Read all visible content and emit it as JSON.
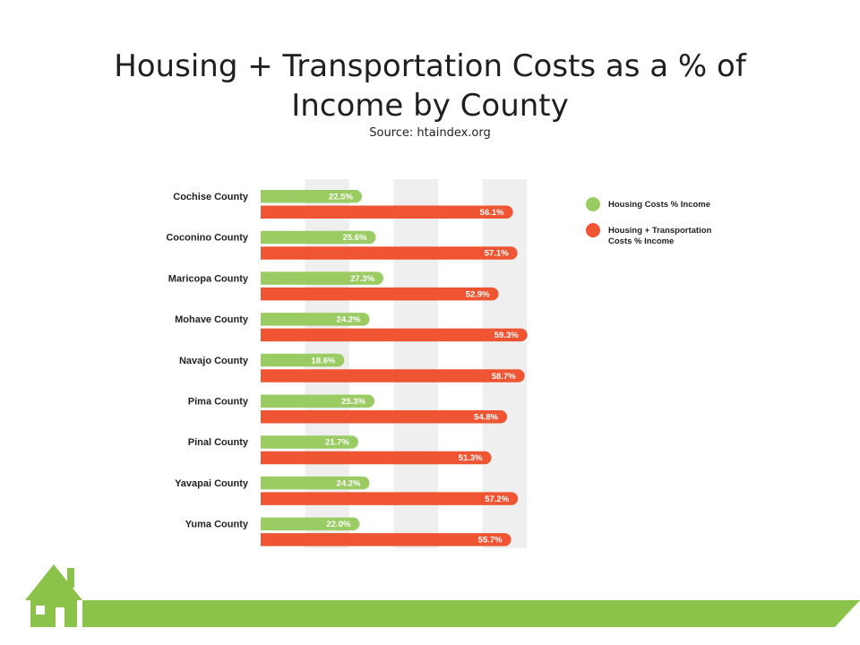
{
  "page": {
    "title": "Housing + Transportation Costs as a % of Income by County",
    "subtitle": "Source: htaindex.org"
  },
  "colors": {
    "housing": "#9bcc63",
    "housing_transport": "#ef5532",
    "band": "#efefef",
    "footer_green": "#8bc34a",
    "label_text": "#222222",
    "value_text": "#ffffff"
  },
  "footer": {
    "icon": "house-icon"
  },
  "chart_data": {
    "type": "bar",
    "orientation": "horizontal",
    "title": "",
    "xlabel": "",
    "ylabel": "",
    "xlim": [
      0,
      70
    ],
    "grid": "alternating vertical bands",
    "legend_position": "right",
    "categories": [
      "Cochise County",
      "Coconino County",
      "Maricopa County",
      "Mohave County",
      "Navajo County",
      "Pima County",
      "Pinal County",
      "Yavapai County",
      "Yuma County"
    ],
    "series": [
      {
        "name": "Housing Costs % Income",
        "color": "#9bcc63",
        "values": [
          22.5,
          25.6,
          27.3,
          24.2,
          18.6,
          25.3,
          21.7,
          24.2,
          22.0
        ],
        "labels": [
          "22.5%",
          "25.6%",
          "27.3%",
          "24.2%",
          "18.6%",
          "25.3%",
          "21.7%",
          "24.2%",
          "22.0%"
        ]
      },
      {
        "name": "Housing + Transportation Costs % Income",
        "legend_lines": [
          "Housing + Transportation",
          "Costs % Income"
        ],
        "color": "#ef5532",
        "values": [
          56.1,
          57.1,
          52.9,
          59.3,
          58.7,
          54.8,
          51.3,
          57.2,
          55.7
        ],
        "labels": [
          "56.1%",
          "57.1%",
          "52.9%",
          "59.3%",
          "58.7%",
          "54.8%",
          "51.3%",
          "57.2%",
          "55.7%"
        ]
      }
    ]
  }
}
